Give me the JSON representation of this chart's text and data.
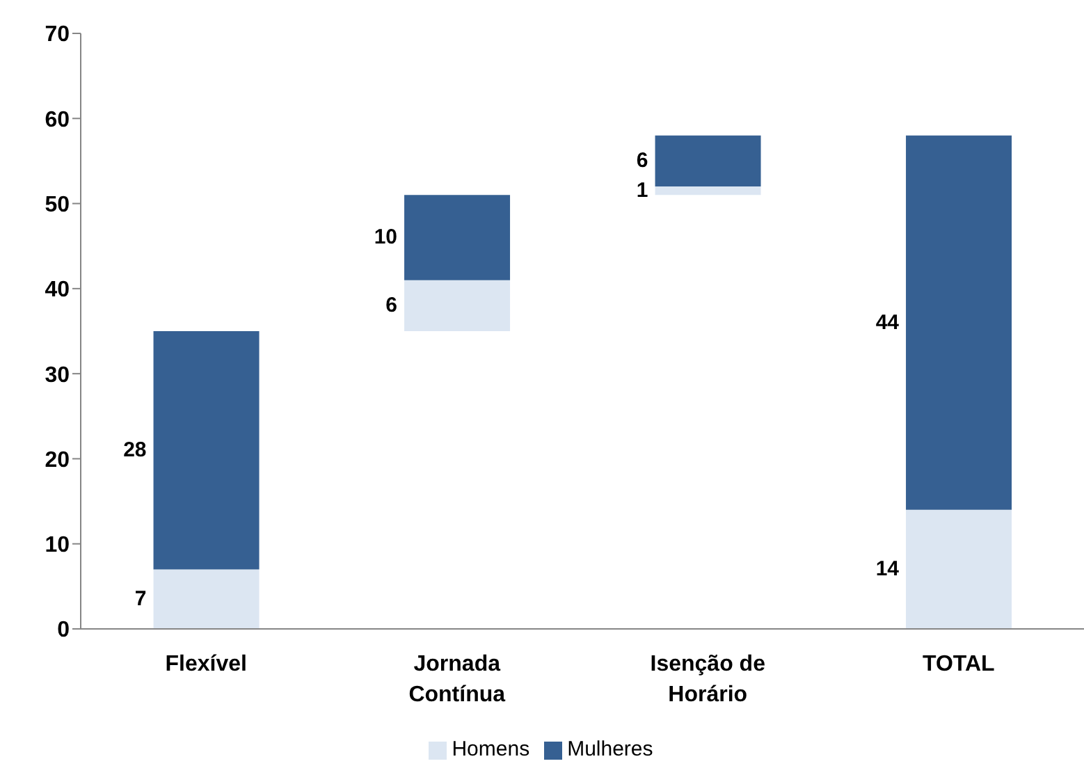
{
  "chart_data": {
    "type": "bar",
    "categories": [
      "Flexível",
      "Jornada Contínua",
      "Isenção de Horário",
      "TOTAL"
    ],
    "series": [
      {
        "name": "Homens",
        "color": "#dce6f2",
        "values": [
          7,
          6,
          1,
          14
        ],
        "base": [
          0,
          35,
          51,
          0
        ]
      },
      {
        "name": "Mulheres",
        "color": "#366092",
        "values": [
          28,
          10,
          6,
          44
        ],
        "base": [
          7,
          41,
          52,
          14
        ]
      }
    ],
    "ylim": [
      0,
      70
    ],
    "yticks": [
      0,
      10,
      20,
      30,
      40,
      50,
      60,
      70
    ],
    "grid": false,
    "legend": "bottom",
    "data_labels": true
  }
}
